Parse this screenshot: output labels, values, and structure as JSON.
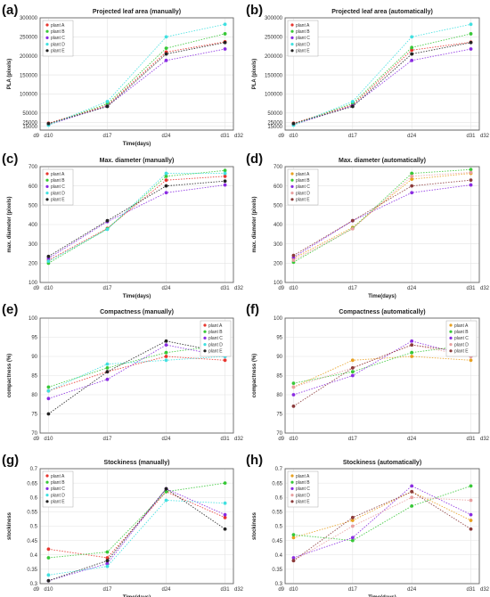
{
  "chart_data": [
    {
      "type": "line",
      "panel_label": "(a)",
      "title": "Projected leaf area (manually)",
      "xlabel": "Time(days)",
      "ylabel": "PLA (pixels)",
      "x_ticks": [
        "d9",
        "d10",
        "d17",
        "d24",
        "d31",
        "d32"
      ],
      "x_tick_values": [
        9,
        10,
        17,
        24,
        31,
        32
      ],
      "xlim": [
        9,
        32
      ],
      "y_ticks": [
        "15000",
        "25000",
        "50000",
        "100000",
        "150000",
        "200000",
        "250000",
        "300000"
      ],
      "y_tick_values": [
        15000,
        25000,
        50000,
        100000,
        150000,
        200000,
        250000,
        300000
      ],
      "ylim": [
        5000,
        300000
      ],
      "x": [
        10,
        17,
        24,
        31
      ],
      "legend_position": "top-left",
      "grid": true,
      "series": [
        {
          "name": "plant A",
          "color": "#e8352e",
          "values": [
            23000,
            70000,
            210000,
            237000
          ]
        },
        {
          "name": "plant B",
          "color": "#37c837",
          "values": [
            20000,
            74000,
            220000,
            258000
          ]
        },
        {
          "name": "plant C",
          "color": "#8a2be2",
          "values": [
            19000,
            68000,
            188000,
            218000
          ]
        },
        {
          "name": "plant D",
          "color": "#40e0e0",
          "values": [
            18000,
            80000,
            250000,
            283000
          ]
        },
        {
          "name": "plant E",
          "color": "#222222",
          "values": [
            22000,
            67000,
            205000,
            235000
          ]
        }
      ]
    },
    {
      "type": "line",
      "panel_label": "(b)",
      "title": "Projected leaf area (automatically)",
      "xlabel": "",
      "ylabel": "PLA (pixels)",
      "x_ticks": [
        "d9",
        "d10",
        "d17",
        "d24",
        "d31",
        "d32"
      ],
      "x_tick_values": [
        9,
        10,
        17,
        24,
        31,
        32
      ],
      "xlim": [
        9,
        32
      ],
      "y_ticks": [
        "15000",
        "25000",
        "50000",
        "100000",
        "150000",
        "200000",
        "250000",
        "300000"
      ],
      "y_tick_values": [
        15000,
        25000,
        50000,
        100000,
        150000,
        200000,
        250000,
        300000
      ],
      "ylim": [
        5000,
        300000
      ],
      "x": [
        10,
        17,
        24,
        31
      ],
      "legend_position": "top-left",
      "grid": true,
      "series": [
        {
          "name": "plant A",
          "color": "#e8352e",
          "values": [
            23000,
            71000,
            215000,
            236000
          ]
        },
        {
          "name": "plant B",
          "color": "#37c837",
          "values": [
            20000,
            75000,
            222000,
            258000
          ]
        },
        {
          "name": "plant C",
          "color": "#8a2be2",
          "values": [
            19000,
            69000,
            188000,
            218000
          ]
        },
        {
          "name": "plant D",
          "color": "#40e0e0",
          "values": [
            18000,
            80000,
            250000,
            283000
          ]
        },
        {
          "name": "plant E",
          "color": "#222222",
          "values": [
            22000,
            67000,
            205000,
            235000
          ]
        }
      ]
    },
    {
      "type": "line",
      "panel_label": "(c)",
      "title": "Max. diameter (manually)",
      "xlabel": "Time(days)",
      "ylabel": "max. diameter (pixels)",
      "x_ticks": [
        "d9",
        "d10",
        "d17",
        "d24",
        "d31",
        "d32"
      ],
      "x_tick_values": [
        9,
        10,
        17,
        24,
        31,
        32
      ],
      "xlim": [
        9,
        32
      ],
      "y_ticks": [
        "100",
        "200",
        "300",
        "400",
        "500",
        "600",
        "700"
      ],
      "y_tick_values": [
        100,
        200,
        300,
        400,
        500,
        600,
        700
      ],
      "ylim": [
        100,
        700
      ],
      "x": [
        10,
        17,
        24,
        31
      ],
      "legend_position": "top-left",
      "grid": true,
      "series": [
        {
          "name": "plant A",
          "color": "#e8352e",
          "values": [
            215,
            380,
            630,
            650
          ]
        },
        {
          "name": "plant B",
          "color": "#37c837",
          "values": [
            200,
            378,
            650,
            680
          ]
        },
        {
          "name": "plant C",
          "color": "#8a2be2",
          "values": [
            225,
            415,
            565,
            605
          ]
        },
        {
          "name": "plant D",
          "color": "#40e0e0",
          "values": [
            210,
            375,
            665,
            665
          ]
        },
        {
          "name": "plant E",
          "color": "#222222",
          "values": [
            235,
            420,
            600,
            625
          ]
        }
      ]
    },
    {
      "type": "line",
      "panel_label": "(d)",
      "title": "Max. diameter (automatically)",
      "xlabel": "Time(days)",
      "ylabel": "max. diameter (pixels)",
      "x_ticks": [
        "d9",
        "d10",
        "d17",
        "d24",
        "d31",
        "d32"
      ],
      "x_tick_values": [
        9,
        10,
        17,
        24,
        31,
        32
      ],
      "xlim": [
        9,
        32
      ],
      "y_ticks": [
        "100",
        "200",
        "300",
        "400",
        "500",
        "600",
        "700"
      ],
      "y_tick_values": [
        100,
        200,
        300,
        400,
        500,
        600,
        700
      ],
      "ylim": [
        100,
        700
      ],
      "x": [
        10,
        17,
        24,
        31
      ],
      "legend_position": "top-left",
      "grid": true,
      "series": [
        {
          "name": "plant A",
          "color": "#e8a020",
          "values": [
            225,
            385,
            635,
            665
          ]
        },
        {
          "name": "plant B",
          "color": "#37c837",
          "values": [
            205,
            380,
            665,
            685
          ]
        },
        {
          "name": "plant C",
          "color": "#8a2be2",
          "values": [
            230,
            420,
            565,
            605
          ]
        },
        {
          "name": "plant D",
          "color": "#e8a0a0",
          "values": [
            215,
            378,
            650,
            670
          ]
        },
        {
          "name": "plant E",
          "color": "#8b3a3a",
          "values": [
            240,
            420,
            600,
            630
          ]
        }
      ]
    },
    {
      "type": "line",
      "panel_label": "(e)",
      "title": "Compactness (manually)",
      "xlabel": "",
      "ylabel": "compactness (%)",
      "x_ticks": [
        "d9",
        "d10",
        "d17",
        "d24",
        "d31",
        "d32"
      ],
      "x_tick_values": [
        9,
        10,
        17,
        24,
        31,
        32
      ],
      "xlim": [
        9,
        32
      ],
      "y_ticks": [
        "70",
        "75",
        "80",
        "85",
        "90",
        "95",
        "100"
      ],
      "y_tick_values": [
        70,
        75,
        80,
        85,
        90,
        95,
        100
      ],
      "ylim": [
        70,
        100
      ],
      "x": [
        10,
        17,
        24,
        31
      ],
      "legend_position": "top-right",
      "grid": true,
      "series": [
        {
          "name": "plant A",
          "color": "#e8352e",
          "values": [
            81,
            86,
            90,
            89
          ]
        },
        {
          "name": "plant B",
          "color": "#37c837",
          "values": [
            82,
            87,
            91,
            93
          ]
        },
        {
          "name": "plant C",
          "color": "#8a2be2",
          "values": [
            79,
            84,
            93,
            90
          ]
        },
        {
          "name": "plant D",
          "color": "#40e0e0",
          "values": [
            81,
            88,
            89,
            90
          ]
        },
        {
          "name": "plant E",
          "color": "#222222",
          "values": [
            75,
            86,
            94,
            91
          ]
        }
      ]
    },
    {
      "type": "line",
      "panel_label": "(f)",
      "title": "Compactness (automatically)",
      "xlabel": "",
      "ylabel": "compactness (%)",
      "x_ticks": [
        "d9",
        "d10",
        "d17",
        "d24",
        "d31",
        "d32"
      ],
      "x_tick_values": [
        9,
        10,
        17,
        24,
        31,
        32
      ],
      "xlim": [
        9,
        32
      ],
      "y_ticks": [
        "70",
        "75",
        "80",
        "85",
        "90",
        "95",
        "100"
      ],
      "y_tick_values": [
        70,
        75,
        80,
        85,
        90,
        95,
        100
      ],
      "ylim": [
        70,
        100
      ],
      "x": [
        10,
        17,
        24,
        31
      ],
      "legend_position": "top-right",
      "grid": true,
      "series": [
        {
          "name": "plant A",
          "color": "#e8a020",
          "values": [
            82,
            89,
            90,
            89
          ]
        },
        {
          "name": "plant B",
          "color": "#37c837",
          "values": [
            83,
            86,
            91,
            93
          ]
        },
        {
          "name": "plant C",
          "color": "#8a2be2",
          "values": [
            80,
            85,
            94,
            90
          ]
        },
        {
          "name": "plant D",
          "color": "#e8a0a0",
          "values": [
            82,
            87,
            93,
            90
          ]
        },
        {
          "name": "plant E",
          "color": "#8b3a3a",
          "values": [
            77,
            87,
            93,
            91
          ]
        }
      ]
    },
    {
      "type": "line",
      "panel_label": "(g)",
      "title": "Stockiness (manually)",
      "xlabel": "Time(days)",
      "ylabel": "stockiness",
      "x_ticks": [
        "d9",
        "d10",
        "d17",
        "d24",
        "d31",
        "d32"
      ],
      "x_tick_values": [
        9,
        10,
        17,
        24,
        31,
        32
      ],
      "xlim": [
        9,
        32
      ],
      "y_ticks": [
        "0.3",
        "0.35",
        "0.4",
        "0.45",
        "0.5",
        "0.55",
        "0.6",
        "0.65",
        "0.7"
      ],
      "y_tick_values": [
        0.3,
        0.35,
        0.4,
        0.45,
        0.5,
        0.55,
        0.6,
        0.65,
        0.7
      ],
      "ylim": [
        0.3,
        0.7
      ],
      "x": [
        10,
        17,
        24,
        31
      ],
      "legend_position": "top-left",
      "grid": true,
      "series": [
        {
          "name": "plant A",
          "color": "#e8352e",
          "values": [
            0.42,
            0.39,
            0.62,
            0.53
          ]
        },
        {
          "name": "plant B",
          "color": "#37c837",
          "values": [
            0.39,
            0.41,
            0.62,
            0.65
          ]
        },
        {
          "name": "plant C",
          "color": "#8a2be2",
          "values": [
            0.31,
            0.37,
            0.63,
            0.54
          ]
        },
        {
          "name": "plant D",
          "color": "#40e0e0",
          "values": [
            0.33,
            0.36,
            0.59,
            0.58
          ]
        },
        {
          "name": "plant E",
          "color": "#222222",
          "values": [
            0.31,
            0.38,
            0.63,
            0.49
          ]
        }
      ]
    },
    {
      "type": "line",
      "panel_label": "(h)",
      "title": "Stockiness (automatically)",
      "xlabel": "Time(days)",
      "ylabel": "stockiness",
      "x_ticks": [
        "d9",
        "d10",
        "d17",
        "d24",
        "d31",
        "d32"
      ],
      "x_tick_values": [
        9,
        10,
        17,
        24,
        31,
        32
      ],
      "xlim": [
        9,
        32
      ],
      "y_ticks": [
        "0.3",
        "0.35",
        "0.4",
        "0.45",
        "0.5",
        "0.55",
        "0.6",
        "0.65",
        "0.7"
      ],
      "y_tick_values": [
        0.3,
        0.35,
        0.4,
        0.45,
        0.5,
        0.55,
        0.6,
        0.65,
        0.7
      ],
      "ylim": [
        0.3,
        0.7
      ],
      "x": [
        10,
        17,
        24,
        31
      ],
      "legend_position": "top-left",
      "grid": true,
      "series": [
        {
          "name": "plant A",
          "color": "#e8a020",
          "values": [
            0.46,
            0.52,
            0.62,
            0.52
          ]
        },
        {
          "name": "plant B",
          "color": "#37c837",
          "values": [
            0.47,
            0.45,
            0.57,
            0.64
          ]
        },
        {
          "name": "plant C",
          "color": "#8a2be2",
          "values": [
            0.39,
            0.46,
            0.64,
            0.54
          ]
        },
        {
          "name": "plant D",
          "color": "#e8a0a0",
          "values": [
            0.38,
            0.5,
            0.6,
            0.59
          ]
        },
        {
          "name": "plant E",
          "color": "#8b3a3a",
          "values": [
            0.38,
            0.53,
            0.62,
            0.49
          ]
        }
      ]
    }
  ]
}
